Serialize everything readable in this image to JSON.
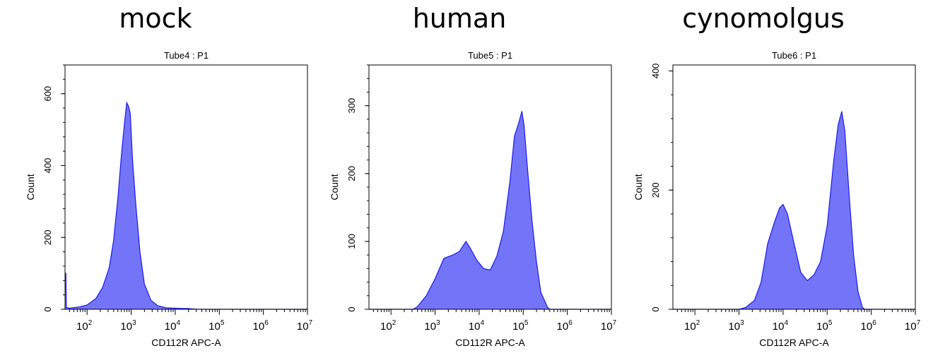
{
  "chart_data": [
    {
      "type": "area",
      "heading": "mock",
      "title": "Tube4 : P1",
      "xlabel": "CD112R APC-A",
      "ylabel": "Count",
      "xscale": "log",
      "xlim": [
        1.5,
        7
      ],
      "ylim": [
        0,
        680
      ],
      "yticks": [
        0,
        200,
        400,
        600
      ],
      "xticks": [
        2,
        3,
        4,
        5,
        6,
        7
      ],
      "fill_color": "#7474f8",
      "line_color": "#1a1aee",
      "points": [
        [
          1.5,
          100
        ],
        [
          1.52,
          100
        ],
        [
          1.53,
          5
        ],
        [
          1.6,
          3
        ],
        [
          1.8,
          6
        ],
        [
          2.0,
          12
        ],
        [
          2.2,
          30
        ],
        [
          2.35,
          60
        ],
        [
          2.5,
          115
        ],
        [
          2.6,
          190
        ],
        [
          2.7,
          310
        ],
        [
          2.78,
          430
        ],
        [
          2.85,
          520
        ],
        [
          2.9,
          575
        ],
        [
          2.94,
          565
        ],
        [
          2.98,
          545
        ],
        [
          3.03,
          420
        ],
        [
          3.1,
          300
        ],
        [
          3.2,
          160
        ],
        [
          3.3,
          70
        ],
        [
          3.45,
          25
        ],
        [
          3.6,
          10
        ],
        [
          3.8,
          4
        ],
        [
          4.0,
          3
        ],
        [
          4.3,
          2
        ],
        [
          4.5,
          0
        ],
        [
          7.0,
          0
        ]
      ]
    },
    {
      "type": "area",
      "heading": "human",
      "title": "Tube5 : P1",
      "xlabel": "CD112R APC-A",
      "ylabel": "Count",
      "xscale": "log",
      "xlim": [
        1.5,
        7
      ],
      "ylim": [
        0,
        360
      ],
      "yticks": [
        0,
        100,
        200,
        300
      ],
      "xticks": [
        2,
        3,
        4,
        5,
        6,
        7
      ],
      "fill_color": "#7474f8",
      "line_color": "#1a1aee",
      "points": [
        [
          1.5,
          0
        ],
        [
          2.5,
          0
        ],
        [
          2.6,
          4
        ],
        [
          2.8,
          20
        ],
        [
          3.0,
          45
        ],
        [
          3.2,
          75
        ],
        [
          3.4,
          80
        ],
        [
          3.55,
          85
        ],
        [
          3.7,
          100
        ],
        [
          3.8,
          90
        ],
        [
          3.95,
          72
        ],
        [
          4.1,
          60
        ],
        [
          4.25,
          58
        ],
        [
          4.4,
          78
        ],
        [
          4.55,
          115
        ],
        [
          4.7,
          190
        ],
        [
          4.8,
          255
        ],
        [
          4.9,
          275
        ],
        [
          4.97,
          292
        ],
        [
          5.02,
          270
        ],
        [
          5.1,
          205
        ],
        [
          5.2,
          130
        ],
        [
          5.3,
          70
        ],
        [
          5.4,
          25
        ],
        [
          5.55,
          3
        ],
        [
          5.6,
          0
        ],
        [
          7.0,
          0
        ]
      ]
    },
    {
      "type": "area",
      "heading": "cynomolgus",
      "title": "Tube6 : P1",
      "xlabel": "CD112R APC-A",
      "ylabel": "Count",
      "xscale": "log",
      "xlim": [
        1.5,
        7
      ],
      "ylim": [
        0,
        410
      ],
      "yticks": [
        0,
        200,
        400
      ],
      "xticks": [
        2,
        3,
        4,
        5,
        6,
        7
      ],
      "fill_color": "#7474f8",
      "line_color": "#1a1aee",
      "points": [
        [
          1.5,
          0
        ],
        [
          3.0,
          0
        ],
        [
          3.15,
          3
        ],
        [
          3.35,
          15
        ],
        [
          3.5,
          45
        ],
        [
          3.65,
          110
        ],
        [
          3.8,
          145
        ],
        [
          3.92,
          170
        ],
        [
          4.0,
          176
        ],
        [
          4.1,
          160
        ],
        [
          4.25,
          110
        ],
        [
          4.4,
          62
        ],
        [
          4.55,
          48
        ],
        [
          4.7,
          58
        ],
        [
          4.85,
          80
        ],
        [
          5.0,
          140
        ],
        [
          5.15,
          250
        ],
        [
          5.25,
          310
        ],
        [
          5.33,
          332
        ],
        [
          5.4,
          300
        ],
        [
          5.5,
          190
        ],
        [
          5.6,
          90
        ],
        [
          5.7,
          30
        ],
        [
          5.8,
          3
        ],
        [
          5.85,
          0
        ],
        [
          7.0,
          0
        ]
      ]
    }
  ]
}
